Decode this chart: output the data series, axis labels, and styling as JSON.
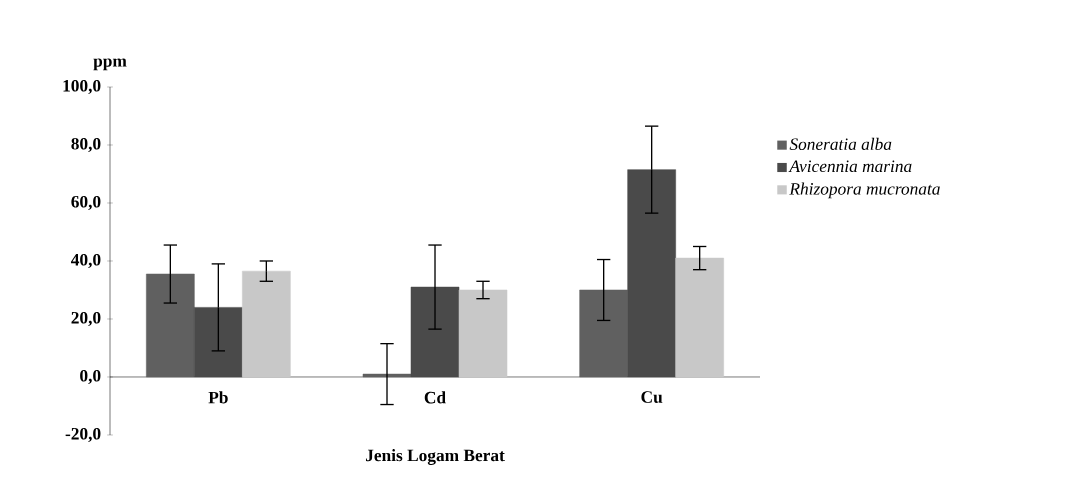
{
  "chart_data": {
    "type": "bar",
    "xlabel": "Jenis Logam Berat",
    "ylabel": "ppm",
    "categories": [
      "Pb",
      "Cd",
      "Cu"
    ],
    "series": [
      {
        "name": "Soneratia alba",
        "color": "#606060",
        "values": [
          35.5,
          1,
          30
        ],
        "errors": [
          10,
          10.5,
          10.5
        ]
      },
      {
        "name": "Avicennia marina",
        "color": "#4a4a4a",
        "values": [
          24,
          31,
          71.5
        ],
        "errors": [
          15,
          14.5,
          15
        ]
      },
      {
        "name": "Rhizopora mucronata",
        "color": "#c8c8c8",
        "values": [
          36.5,
          30,
          41
        ],
        "errors": [
          3.5,
          3,
          4
        ]
      }
    ],
    "ylim": [
      -20,
      100
    ],
    "yticks": [
      {
        "value": -20,
        "label": "-20,0"
      },
      {
        "value": 0,
        "label": "0,0"
      },
      {
        "value": 20,
        "label": "20,0"
      },
      {
        "value": 40,
        "label": "40,0"
      },
      {
        "value": 60,
        "label": "60,0"
      },
      {
        "value": 80,
        "label": "80,0"
      },
      {
        "value": 100,
        "label": "100,0"
      }
    ],
    "grid": false,
    "legend": "right"
  }
}
